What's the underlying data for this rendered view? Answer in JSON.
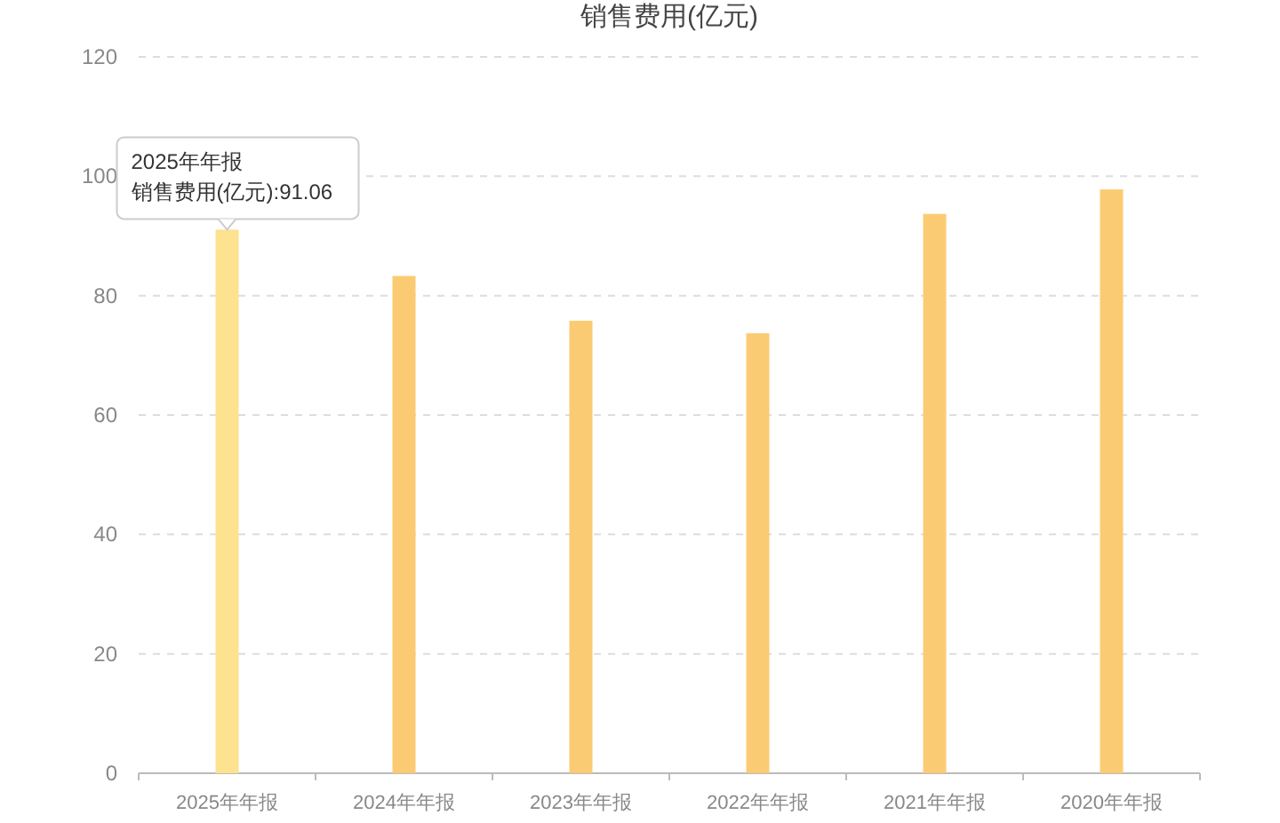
{
  "chart_data": {
    "type": "bar",
    "title": "销售费用(亿元)",
    "categories": [
      "2025年年报",
      "2024年年报",
      "2023年年报",
      "2022年年报",
      "2021年年报",
      "2020年年报"
    ],
    "values": [
      91.06,
      83.3,
      75.8,
      73.7,
      93.7,
      97.8
    ],
    "colors": [
      "#fde28f",
      "#fbcb73",
      "#fbcb73",
      "#fbcb73",
      "#fbcb73",
      "#fbcb73"
    ],
    "ylim": [
      0,
      120
    ],
    "yticks": [
      0,
      20,
      40,
      60,
      80,
      100,
      120
    ],
    "grid": "y",
    "annotations": [
      {
        "text": "2025年年报",
        "x": "2025年年报",
        "y": 91.06
      },
      "销售费用(亿元):91.06"
    ]
  }
}
